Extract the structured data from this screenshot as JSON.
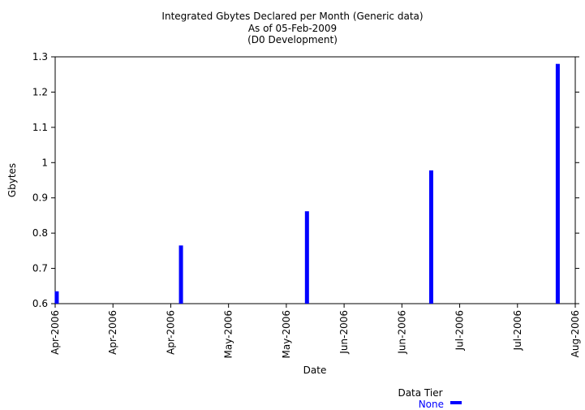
{
  "chart_data": {
    "type": "bar",
    "title": "Integrated Gbytes Declared per Month (Generic data)",
    "subtitle": "As of 05-Feb-2009",
    "subtitle2": "(D0 Development)",
    "xlabel": "Date",
    "ylabel": "Gbytes",
    "ylim": [
      0.6,
      1.3
    ],
    "yticks": [
      0.6,
      0.7,
      0.8,
      0.9,
      1,
      1.1,
      1.2,
      1.3
    ],
    "ytick_labels": [
      "0.6",
      "0.7",
      "0.8",
      "0.9",
      "1",
      "1.1",
      "1.2",
      "1.3"
    ],
    "xlim": [
      0,
      9
    ],
    "xtick_labels": [
      "Apr-2006",
      "Apr-2006",
      "Apr-2006",
      "May-2006",
      "May-2006",
      "Jun-2006",
      "Jun-2006",
      "Jul-2006",
      "Jul-2006",
      "Aug-2006"
    ],
    "series": [
      {
        "name": "None",
        "color": "#0000ff",
        "x": [
          0.02,
          2.17,
          4.35,
          6.5,
          8.69
        ],
        "values": [
          0.635,
          0.765,
          0.862,
          0.978,
          1.28
        ]
      }
    ],
    "legend": {
      "title": "Data Tier",
      "position": "bottom-center",
      "entries": [
        "None"
      ]
    },
    "grid": false
  }
}
